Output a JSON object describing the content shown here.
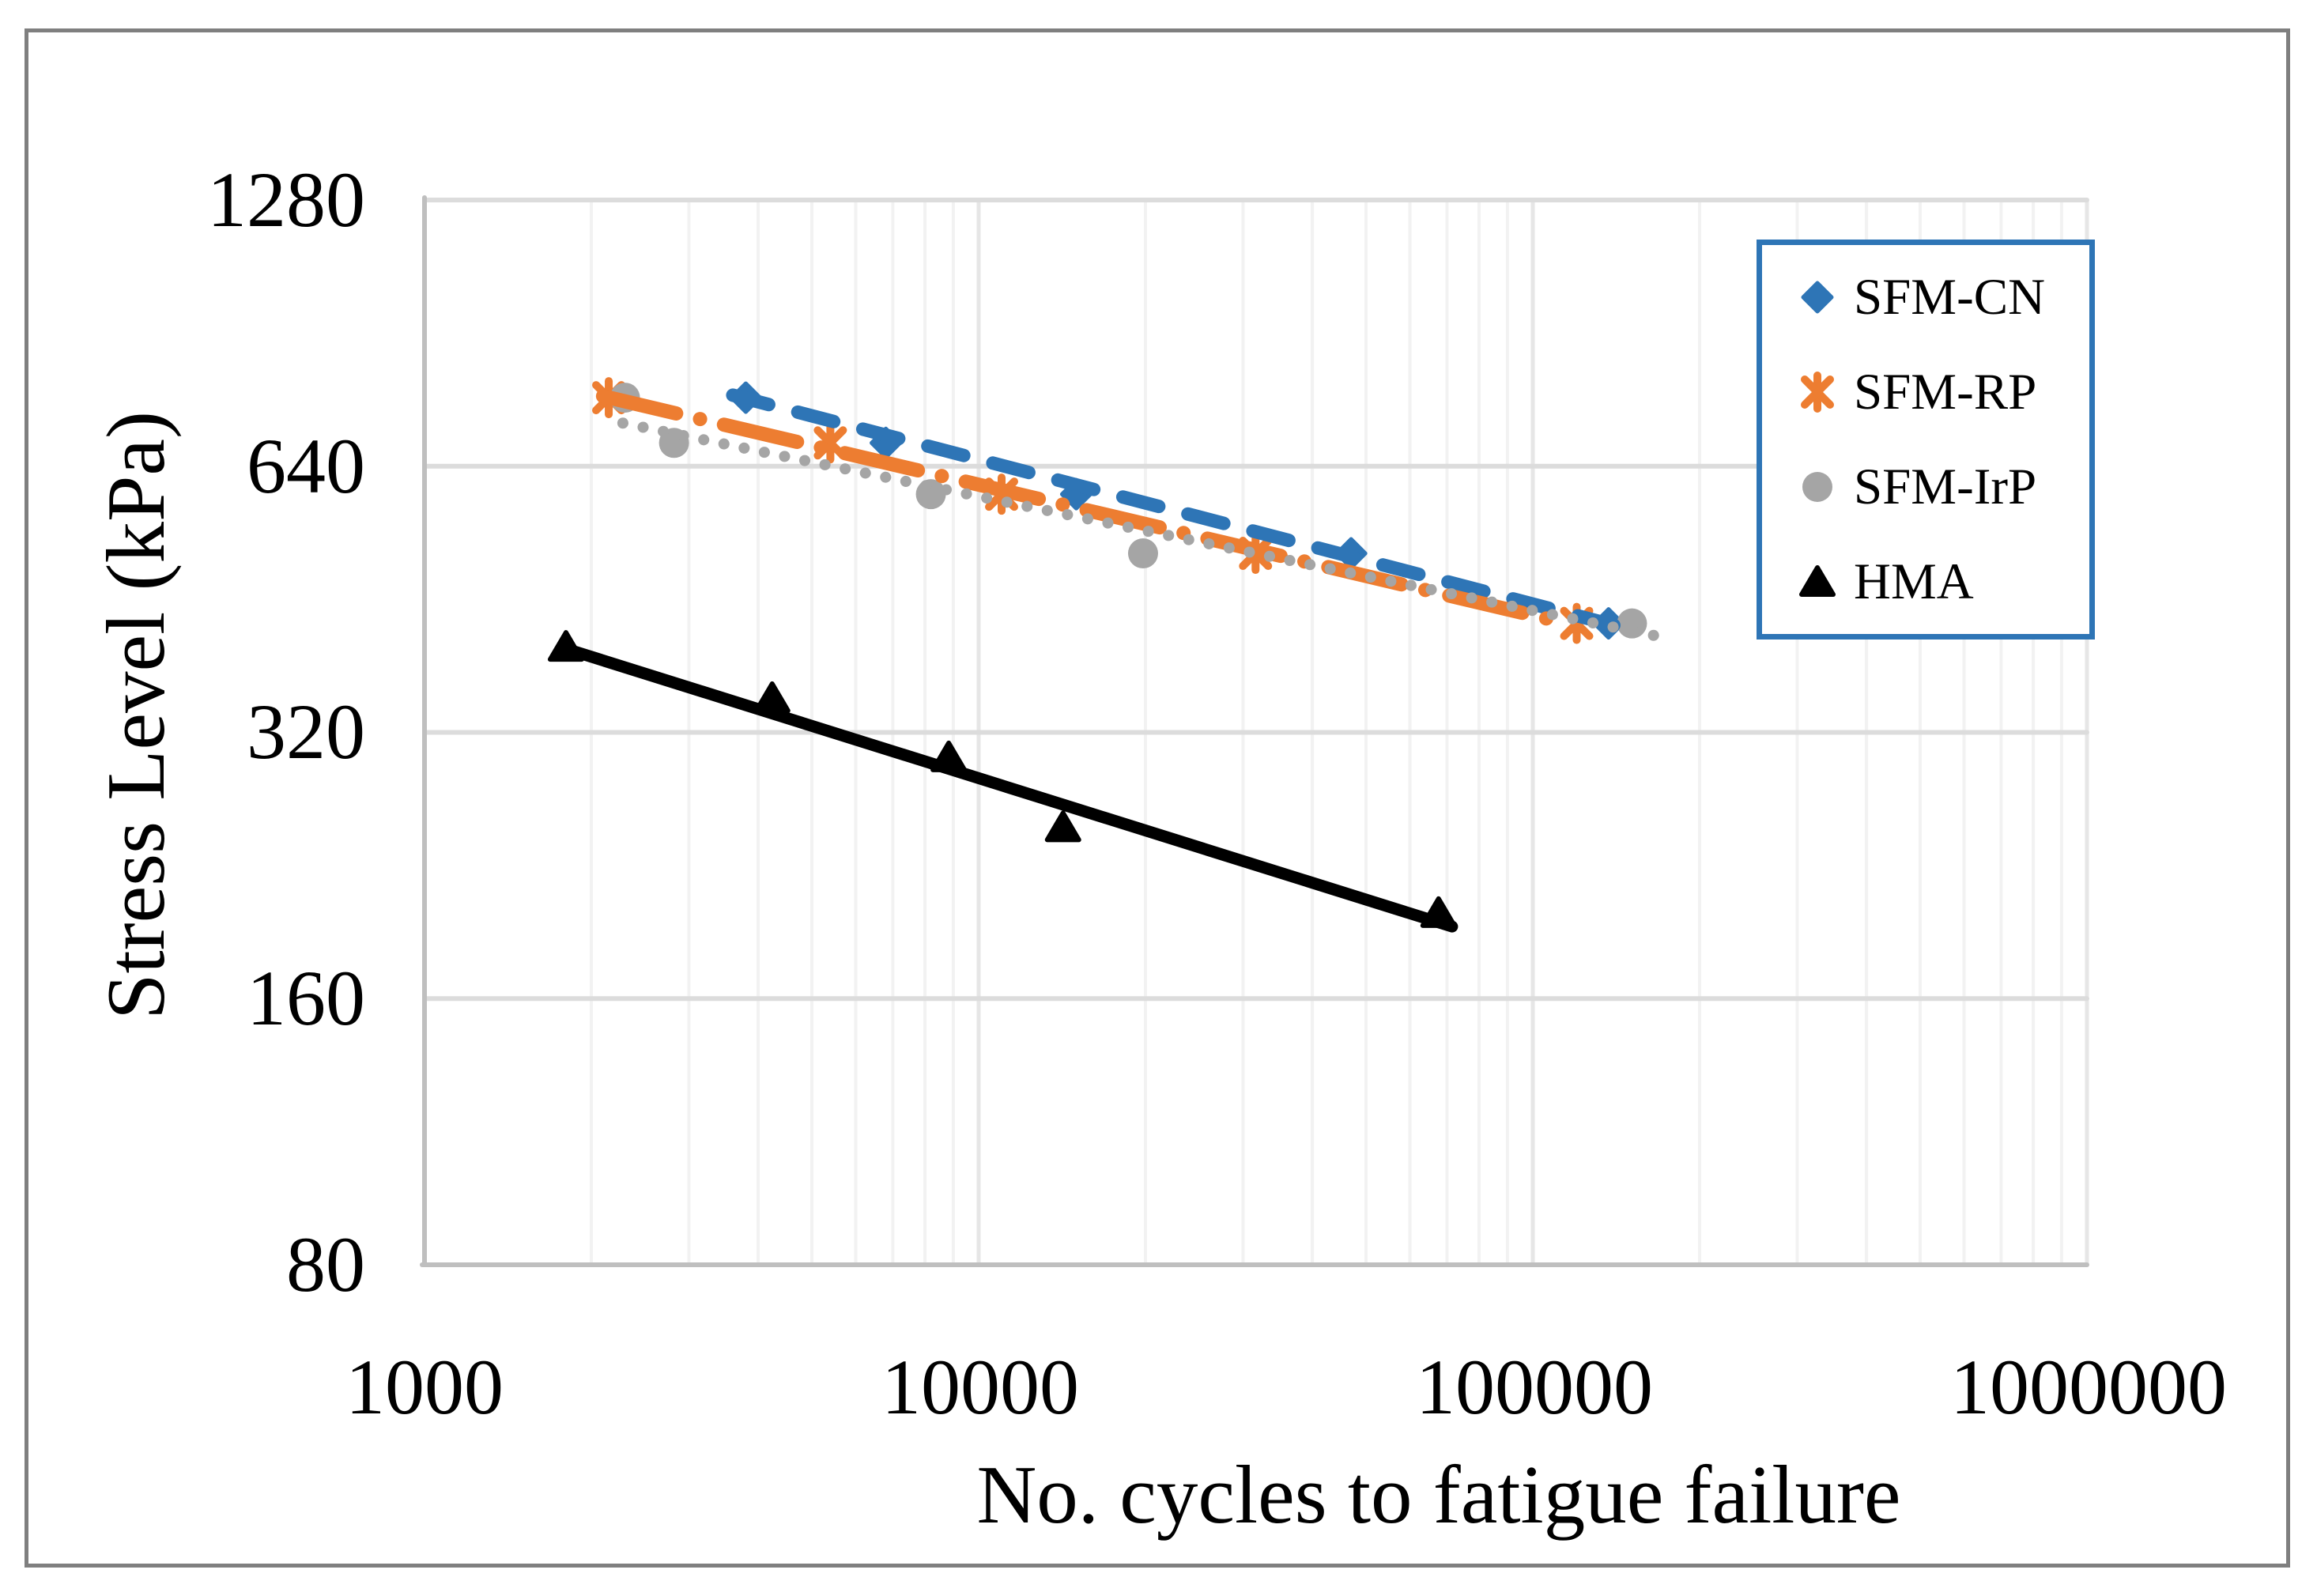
{
  "figure": {
    "background": "#FFFFFF",
    "border_color": "#7F7F7F"
  },
  "legend": {
    "border_color": "#2E75B6",
    "position": "upper right"
  },
  "chart_data": {
    "type": "scatter",
    "title": "",
    "xlabel": "No. cycles to fatigue failure",
    "ylabel": "Stress Level (kPa)",
    "x_scale": "log",
    "y_scale": "log2",
    "xlim": [
      1000,
      1000000
    ],
    "ylim": [
      80,
      1280
    ],
    "grid": true,
    "legend_position": "upper right",
    "x_tick_labels": [
      "1000",
      "10000",
      "100000",
      "1000000"
    ],
    "x_tick_values": [
      1000,
      10000,
      100000,
      1000000
    ],
    "y_tick_labels": [
      "1280",
      "640",
      "320",
      "160",
      "80"
    ],
    "y_tick_values": [
      1280,
      640,
      320,
      160,
      80
    ],
    "series": [
      {
        "name": "SFM-CN",
        "marker": "diamond",
        "color": "#2E75B6",
        "trendline_style": "dashed",
        "points": [
          [
            3800,
            765
          ],
          [
            6800,
            680
          ],
          [
            15000,
            595
          ],
          [
            47000,
            510
          ],
          [
            137000,
            425
          ]
        ],
        "trendline": {
          "x1": 3600,
          "y1": 770,
          "x2": 140000,
          "y2": 423
        }
      },
      {
        "name": "SFM-RP",
        "marker": "asterisk",
        "color": "#ED7D31",
        "trendline_style": "long-dash-dot",
        "points": [
          [
            2150,
            765
          ],
          [
            5400,
            680
          ],
          [
            11000,
            595
          ],
          [
            31600,
            510
          ],
          [
            120000,
            425
          ]
        ],
        "trendline": {
          "x1": 2100,
          "y1": 768,
          "x2": 110000,
          "y2": 428
        }
      },
      {
        "name": "SFM-IrP",
        "marker": "circle",
        "color": "#A5A5A5",
        "trendline_style": "dotted",
        "points": [
          [
            2300,
            765
          ],
          [
            2820,
            680
          ],
          [
            8200,
            595
          ],
          [
            19800,
            510
          ],
          [
            151000,
            425
          ]
        ],
        "trendline": {
          "x1": 2280,
          "y1": 716,
          "x2": 178000,
          "y2": 408
        }
      },
      {
        "name": "HMA",
        "marker": "triangle",
        "color": "#000000",
        "trendline_style": "solid",
        "points": [
          [
            1800,
            400
          ],
          [
            4240,
            350
          ],
          [
            8830,
            300
          ],
          [
            14200,
            250
          ],
          [
            67600,
            200
          ]
        ],
        "trendline": {
          "x1": 1795,
          "y1": 398,
          "x2": 71500,
          "y2": 193
        }
      }
    ]
  }
}
